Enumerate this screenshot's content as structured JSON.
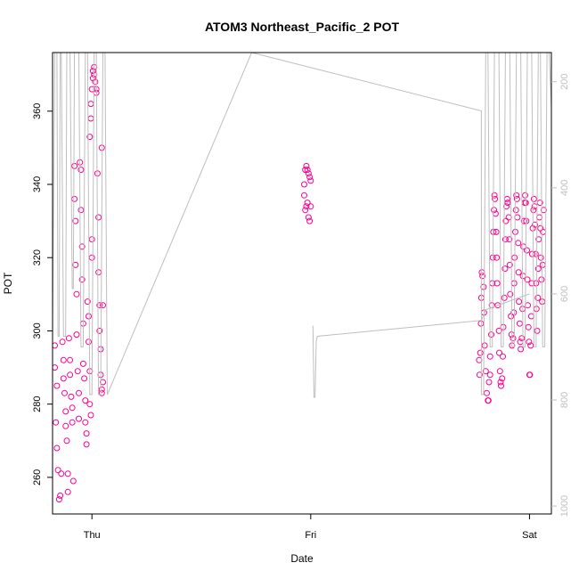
{
  "chart_data": {
    "type": "scatter",
    "title": "ATOM3 Northeast_Pacific_2 POT",
    "xlabel": "Date",
    "ylabel": "POT",
    "x_ticks": [
      "Thu",
      "Fri",
      "Sat"
    ],
    "xlim": [
      -0.18,
      2.1
    ],
    "ylim": [
      250,
      376
    ],
    "y_ticks": [
      260,
      280,
      300,
      320,
      340,
      360
    ],
    "y2_ticks": [
      200,
      400,
      600,
      800,
      1000
    ],
    "y2_range_top_to_bottom": [
      145,
      1015
    ],
    "grid": false,
    "legend": "none",
    "colors": {
      "points": "#ff0090",
      "line": "#bebebe",
      "axis": "#000000"
    },
    "series": [
      {
        "kind": "points",
        "points": [
          [
            -0.17,
            296
          ],
          [
            -0.17,
            290
          ],
          [
            -0.16,
            285
          ],
          [
            -0.165,
            275
          ],
          [
            -0.16,
            268
          ],
          [
            -0.155,
            262
          ],
          [
            -0.15,
            254
          ],
          [
            -0.145,
            255
          ],
          [
            -0.14,
            261
          ],
          [
            -0.135,
            297
          ],
          [
            -0.13,
            292
          ],
          [
            -0.13,
            287
          ],
          [
            -0.125,
            283
          ],
          [
            -0.12,
            278
          ],
          [
            -0.12,
            274
          ],
          [
            -0.115,
            270
          ],
          [
            -0.11,
            256
          ],
          [
            -0.11,
            261
          ],
          [
            -0.105,
            298
          ],
          [
            -0.1,
            292
          ],
          [
            -0.1,
            288
          ],
          [
            -0.095,
            282
          ],
          [
            -0.09,
            279
          ],
          [
            -0.09,
            275
          ],
          [
            -0.085,
            259
          ],
          [
            -0.08,
            345
          ],
          [
            -0.08,
            336
          ],
          [
            -0.075,
            330
          ],
          [
            -0.075,
            318
          ],
          [
            -0.07,
            310
          ],
          [
            -0.07,
            299
          ],
          [
            -0.065,
            289
          ],
          [
            -0.06,
            283
          ],
          [
            -0.06,
            276
          ],
          [
            -0.055,
            346
          ],
          [
            -0.05,
            344
          ],
          [
            -0.05,
            333
          ],
          [
            -0.045,
            323
          ],
          [
            -0.045,
            314
          ],
          [
            -0.04,
            302
          ],
          [
            -0.04,
            291
          ],
          [
            -0.035,
            287
          ],
          [
            -0.03,
            281
          ],
          [
            -0.03,
            275
          ],
          [
            -0.025,
            272
          ],
          [
            -0.025,
            269
          ],
          [
            -0.02,
            308
          ],
          [
            -0.015,
            304
          ],
          [
            -0.015,
            297
          ],
          [
            -0.01,
            289
          ],
          [
            -0.01,
            280
          ],
          [
            -0.005,
            277
          ],
          [
            0.0,
            325
          ],
          [
            0.0,
            320
          ],
          [
            -0.01,
            353
          ],
          [
            -0.005,
            358
          ],
          [
            -0.005,
            362
          ],
          [
            0.0,
            366
          ],
          [
            0.005,
            369
          ],
          [
            0.005,
            371
          ],
          [
            0.01,
            372
          ],
          [
            0.01,
            370
          ],
          [
            0.015,
            368
          ],
          [
            0.02,
            366
          ],
          [
            0.02,
            365
          ],
          [
            0.025,
            343
          ],
          [
            0.03,
            331
          ],
          [
            0.03,
            316
          ],
          [
            0.035,
            307
          ],
          [
            0.035,
            300
          ],
          [
            0.04,
            295
          ],
          [
            0.04,
            288
          ],
          [
            0.045,
            284
          ],
          [
            0.045,
            283
          ],
          [
            0.05,
            286
          ],
          [
            0.05,
            307
          ],
          [
            0.045,
            350
          ]
        ]
      },
      {
        "kind": "points",
        "points": [
          [
            0.98,
            345
          ],
          [
            0.985,
            344
          ],
          [
            0.99,
            343
          ],
          [
            0.995,
            342
          ],
          [
            1.0,
            341
          ],
          [
            0.975,
            344
          ],
          [
            0.97,
            340
          ],
          [
            0.97,
            337
          ],
          [
            0.975,
            333
          ],
          [
            0.98,
            334
          ],
          [
            0.985,
            335
          ],
          [
            0.99,
            331
          ],
          [
            0.995,
            330
          ],
          [
            1.0,
            334
          ]
        ]
      },
      {
        "kind": "points",
        "points": [
          [
            1.77,
            292
          ],
          [
            1.772,
            288
          ],
          [
            1.775,
            294
          ],
          [
            1.778,
            302
          ],
          [
            1.78,
            309
          ],
          [
            1.782,
            316
          ],
          [
            1.785,
            315
          ],
          [
            1.79,
            312
          ],
          [
            1.792,
            305
          ],
          [
            1.795,
            296
          ],
          [
            1.8,
            289
          ],
          [
            1.805,
            283
          ],
          [
            1.81,
            281
          ],
          [
            1.812,
            281
          ],
          [
            1.815,
            286
          ],
          [
            1.82,
            288
          ],
          [
            1.82,
            293
          ],
          [
            1.825,
            299
          ],
          [
            1.828,
            307
          ],
          [
            1.83,
            313
          ],
          [
            1.832,
            320
          ],
          [
            1.835,
            327
          ],
          [
            1.838,
            333
          ],
          [
            1.84,
            337
          ],
          [
            1.842,
            336
          ],
          [
            1.845,
            332
          ],
          [
            1.848,
            327
          ],
          [
            1.85,
            320
          ],
          [
            1.852,
            313
          ],
          [
            1.855,
            307
          ],
          [
            1.86,
            300
          ],
          [
            1.862,
            294
          ],
          [
            1.865,
            289
          ],
          [
            1.868,
            286
          ],
          [
            1.87,
            285
          ],
          [
            1.875,
            287
          ],
          [
            1.878,
            293
          ],
          [
            1.88,
            301
          ],
          [
            1.885,
            309
          ],
          [
            1.888,
            317
          ],
          [
            1.89,
            325
          ],
          [
            1.892,
            330
          ],
          [
            1.895,
            334
          ],
          [
            1.898,
            336
          ],
          [
            1.9,
            335
          ],
          [
            1.905,
            331
          ],
          [
            1.908,
            325
          ],
          [
            1.91,
            318
          ],
          [
            1.912,
            310
          ],
          [
            1.915,
            304
          ],
          [
            1.918,
            299
          ],
          [
            1.92,
            296
          ],
          [
            1.925,
            298
          ],
          [
            1.928,
            305
          ],
          [
            1.93,
            313
          ],
          [
            1.932,
            320
          ],
          [
            1.935,
            327
          ],
          [
            1.938,
            333
          ],
          [
            1.94,
            337
          ],
          [
            1.943,
            336
          ],
          [
            1.945,
            331
          ],
          [
            1.948,
            324
          ],
          [
            1.95,
            316
          ],
          [
            1.952,
            308
          ],
          [
            1.955,
            302
          ],
          [
            1.958,
            297
          ],
          [
            1.96,
            295
          ],
          [
            1.965,
            298
          ],
          [
            1.968,
            306
          ],
          [
            1.97,
            315
          ],
          [
            1.972,
            323
          ],
          [
            1.975,
            330
          ],
          [
            1.978,
            335
          ],
          [
            1.98,
            337
          ],
          [
            1.983,
            335
          ],
          [
            1.985,
            330
          ],
          [
            1.988,
            322
          ],
          [
            1.99,
            314
          ],
          [
            1.992,
            307
          ],
          [
            1.995,
            301
          ],
          [
            1.998,
            297
          ],
          [
            2.0,
            288
          ],
          [
            2.002,
            288
          ],
          [
            2.005,
            296
          ],
          [
            2.008,
            304
          ],
          [
            2.01,
            313
          ],
          [
            2.012,
            321
          ],
          [
            2.015,
            328
          ],
          [
            2.018,
            333
          ],
          [
            2.02,
            336
          ],
          [
            2.023,
            334
          ],
          [
            2.025,
            329
          ],
          [
            2.028,
            321
          ],
          [
            2.03,
            313
          ],
          [
            2.032,
            306
          ],
          [
            2.035,
            300
          ],
          [
            2.038,
            309
          ],
          [
            2.04,
            317
          ],
          [
            2.042,
            325
          ],
          [
            2.045,
            331
          ],
          [
            2.048,
            335
          ],
          [
            2.05,
            328
          ],
          [
            2.052,
            320
          ],
          [
            2.055,
            314
          ],
          [
            2.058,
            308
          ],
          [
            2.06,
            318
          ],
          [
            2.062,
            327
          ],
          [
            2.065,
            333
          ]
        ]
      },
      {
        "kind": "line",
        "axis": "right",
        "points": [
          [
            -0.18,
            680
          ],
          [
            -0.17,
            145
          ],
          [
            -0.16,
            145
          ],
          [
            -0.155,
            680
          ],
          [
            -0.15,
            680
          ],
          [
            -0.145,
            145
          ],
          [
            -0.14,
            145
          ],
          [
            -0.13,
            680
          ],
          [
            -0.12,
            680
          ],
          [
            -0.115,
            145
          ],
          [
            -0.1,
            145
          ],
          [
            -0.09,
            590
          ],
          [
            -0.085,
            590
          ],
          [
            -0.08,
            145
          ],
          [
            -0.06,
            145
          ],
          [
            -0.05,
            700
          ],
          [
            -0.04,
            700
          ],
          [
            -0.03,
            145
          ],
          [
            -0.02,
            145
          ],
          [
            -0.01,
            790
          ],
          [
            0.0,
            790
          ],
          [
            0.01,
            145
          ],
          [
            0.02,
            145
          ],
          [
            0.03,
            790
          ],
          [
            0.04,
            790
          ],
          [
            0.05,
            145
          ],
          [
            0.06,
            145
          ],
          [
            0.07,
            790
          ],
          [
            0.73,
            145
          ],
          [
            1.78,
            255
          ],
          [
            1.78,
            790
          ],
          [
            1.79,
            790
          ],
          [
            1.8,
            145
          ],
          [
            1.81,
            145
          ],
          [
            1.82,
            700
          ],
          [
            1.83,
            700
          ],
          [
            1.84,
            145
          ],
          [
            1.86,
            145
          ],
          [
            1.87,
            700
          ],
          [
            1.88,
            700
          ],
          [
            1.89,
            145
          ],
          [
            1.91,
            145
          ],
          [
            1.92,
            700
          ],
          [
            1.93,
            700
          ],
          [
            1.94,
            145
          ],
          [
            1.96,
            145
          ],
          [
            1.97,
            700
          ],
          [
            1.98,
            700
          ],
          [
            1.99,
            145
          ],
          [
            2.01,
            145
          ],
          [
            2.02,
            700
          ],
          [
            2.03,
            700
          ],
          [
            2.04,
            145
          ],
          [
            2.05,
            145
          ],
          [
            2.06,
            700
          ],
          [
            2.07,
            700
          ],
          [
            2.08,
            145
          ],
          [
            2.09,
            145
          ],
          [
            2.1,
            250
          ]
        ]
      },
      {
        "kind": "line",
        "axis": "right",
        "points": [
          [
            1.01,
            660
          ],
          [
            1.015,
            795
          ],
          [
            1.02,
            795
          ],
          [
            1.025,
            690
          ],
          [
            1.03,
            680
          ],
          [
            1.78,
            650
          ],
          [
            1.8,
            630
          ],
          [
            2.0,
            600
          ]
        ]
      }
    ]
  }
}
